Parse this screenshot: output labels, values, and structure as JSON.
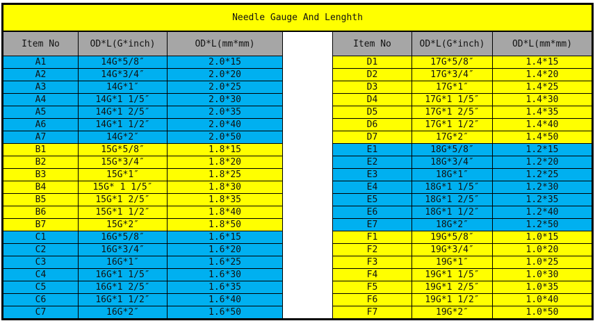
{
  "title": "Needle Gauge And Lenghth",
  "headers": [
    "Item No",
    "OD*L(G*inch)",
    "OD*L(mm*mm)"
  ],
  "colors": {
    "blue": "#00B0F0",
    "yellow": "#FFFF00",
    "header_gray": "#A6A6A6"
  },
  "left_rows": [
    {
      "item": "A1",
      "inch": "14G*5/8″",
      "mm": "2.0*15",
      "color": "blue"
    },
    {
      "item": "A2",
      "inch": "14G*3/4″",
      "mm": "2.0*20",
      "color": "blue"
    },
    {
      "item": "A3",
      "inch": "14G*1″",
      "mm": "2.0*25",
      "color": "blue"
    },
    {
      "item": "A4",
      "inch": "14G*1 1/5″",
      "mm": "2.0*30",
      "color": "blue"
    },
    {
      "item": "A5",
      "inch": "14G*1 2/5″",
      "mm": "2.0*35",
      "color": "blue"
    },
    {
      "item": "A6",
      "inch": "14G*1 1/2″",
      "mm": "2.0*40",
      "color": "blue"
    },
    {
      "item": "A7",
      "inch": "14G*2″",
      "mm": "2.0*50",
      "color": "blue"
    },
    {
      "item": "B1",
      "inch": "15G*5/8″",
      "mm": "1.8*15",
      "color": "yellow"
    },
    {
      "item": "B2",
      "inch": "15G*3/4″",
      "mm": "1.8*20",
      "color": "yellow"
    },
    {
      "item": "B3",
      "inch": "15G*1″",
      "mm": "1.8*25",
      "color": "yellow"
    },
    {
      "item": "B4",
      "inch": "15G* 1 1/5″",
      "mm": "1.8*30",
      "color": "yellow"
    },
    {
      "item": "B5",
      "inch": "15G*1 2/5″",
      "mm": "1.8*35",
      "color": "yellow"
    },
    {
      "item": "B6",
      "inch": "15G*1 1/2″",
      "mm": "1.8*40",
      "color": "yellow"
    },
    {
      "item": "B7",
      "inch": "15G*2″",
      "mm": "1.8*50",
      "color": "yellow"
    },
    {
      "item": "C1",
      "inch": "16G*5/8″",
      "mm": "1.6*15",
      "color": "blue"
    },
    {
      "item": "C2",
      "inch": "16G*3/4″",
      "mm": "1.6*20",
      "color": "blue"
    },
    {
      "item": "C3",
      "inch": "16G*1″",
      "mm": "1.6*25",
      "color": "blue"
    },
    {
      "item": "C4",
      "inch": "16G*1 1/5″",
      "mm": "1.6*30",
      "color": "blue"
    },
    {
      "item": "C5",
      "inch": "16G*1 2/5″",
      "mm": "1.6*35",
      "color": "blue"
    },
    {
      "item": "C6",
      "inch": "16G*1 1/2″",
      "mm": "1.6*40",
      "color": "blue"
    },
    {
      "item": "C7",
      "inch": "16G*2″",
      "mm": "1.6*50",
      "color": "blue"
    }
  ],
  "right_rows": [
    {
      "item": "D1",
      "inch": "17G*5/8″",
      "mm": "1.4*15",
      "color": "yellow"
    },
    {
      "item": "D2",
      "inch": "17G*3/4″",
      "mm": "1.4*20",
      "color": "yellow"
    },
    {
      "item": "D3",
      "inch": "17G*1″",
      "mm": "1.4*25",
      "color": "yellow"
    },
    {
      "item": "D4",
      "inch": "17G*1 1/5″",
      "mm": "1.4*30",
      "color": "yellow"
    },
    {
      "item": "D5",
      "inch": "17G*1 2/5″",
      "mm": "1.4*35",
      "color": "yellow"
    },
    {
      "item": "D6",
      "inch": "17G*1 1/2″",
      "mm": "1.4*40",
      "color": "yellow"
    },
    {
      "item": "D7",
      "inch": "17G*2″",
      "mm": "1.4*50",
      "color": "yellow"
    },
    {
      "item": "E1",
      "inch": "18G*5/8″",
      "mm": "1.2*15",
      "color": "blue"
    },
    {
      "item": "E2",
      "inch": "18G*3/4″",
      "mm": "1.2*20",
      "color": "blue"
    },
    {
      "item": "E3",
      "inch": "18G*1″",
      "mm": "1.2*25",
      "color": "blue"
    },
    {
      "item": "E4",
      "inch": "18G*1 1/5″",
      "mm": "1.2*30",
      "color": "blue"
    },
    {
      "item": "E5",
      "inch": "18G*1 2/5″",
      "mm": "1.2*35",
      "color": "blue"
    },
    {
      "item": "E6",
      "inch": "18G*1 1/2″",
      "mm": "1.2*40",
      "color": "blue"
    },
    {
      "item": "E7",
      "inch": "18G*2″",
      "mm": "1.2*50",
      "color": "blue"
    },
    {
      "item": "F1",
      "inch": "19G*5/8″",
      "mm": "1.0*15",
      "color": "yellow"
    },
    {
      "item": "F2",
      "inch": "19G*3/4″",
      "mm": "1.0*20",
      "color": "yellow"
    },
    {
      "item": "F3",
      "inch": "19G*1″",
      "mm": "1.0*25",
      "color": "yellow"
    },
    {
      "item": "F4",
      "inch": "19G*1 1/5″",
      "mm": "1.0*30",
      "color": "yellow"
    },
    {
      "item": "F5",
      "inch": "19G*1 2/5″",
      "mm": "1.0*35",
      "color": "yellow"
    },
    {
      "item": "F6",
      "inch": "19G*1 1/2″",
      "mm": "1.0*40",
      "color": "yellow"
    },
    {
      "item": "F7",
      "inch": "19G*2″",
      "mm": "1.0*50",
      "color": "yellow"
    }
  ]
}
